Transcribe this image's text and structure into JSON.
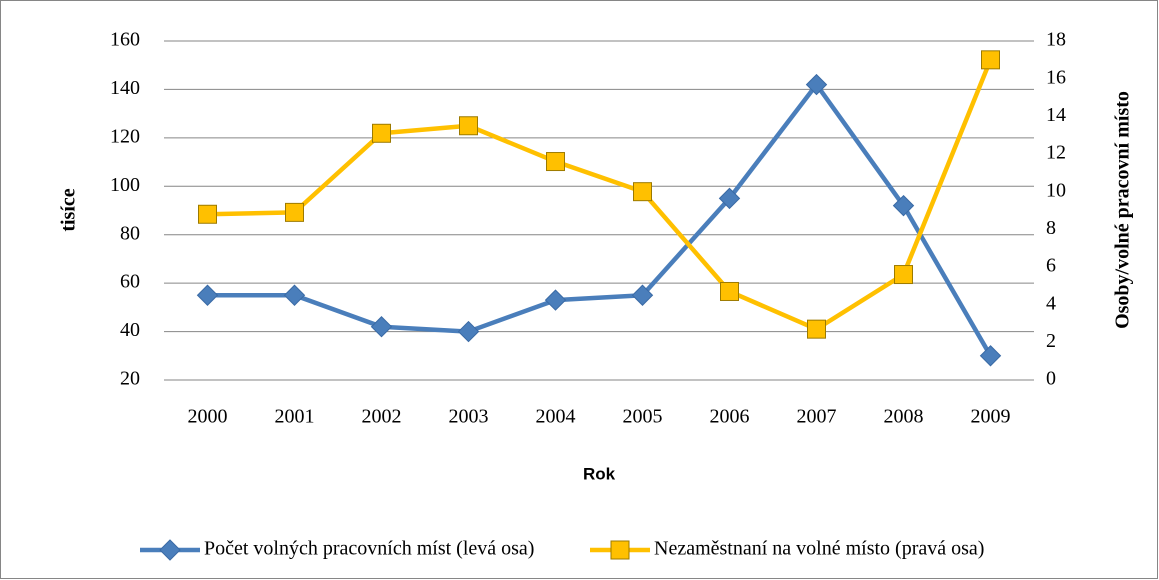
{
  "chart_data": {
    "type": "line",
    "x_label": "Rok",
    "y_label": "tisíce",
    "y2_label": "Osoby/volné pracovní místo",
    "categories": [
      "2000",
      "2001",
      "2002",
      "2003",
      "2004",
      "2005",
      "2006",
      "2007",
      "2008",
      "2009"
    ],
    "series": [
      {
        "name": "Počet volných pracovních míst (levá osa)",
        "color": "#4a7ebb",
        "marker": "diamond",
        "values": [
          55,
          55,
          42,
          40,
          53,
          55,
          95,
          142,
          92,
          30
        ]
      },
      {
        "name": "Nezaměstnaní na volné místo (pravá osa)",
        "color": "#ffc000",
        "marker": "square",
        "axis": "y2",
        "values": [
          8.8,
          8.9,
          13.1,
          13.5,
          11.6,
          10.0,
          4.7,
          2.7,
          5.6,
          17.0
        ]
      }
    ],
    "ylim": [
      20,
      160
    ],
    "yticks": [
      20,
      40,
      60,
      80,
      100,
      120,
      140,
      160
    ],
    "y2lim": [
      0,
      18
    ],
    "y2ticks": [
      0,
      2,
      4,
      6,
      8,
      10,
      12,
      14,
      16,
      18
    ],
    "grid": true,
    "legend": "bottom"
  }
}
